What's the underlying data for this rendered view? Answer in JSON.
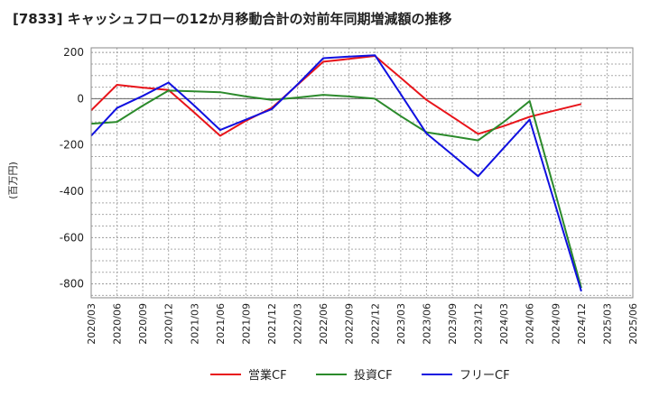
{
  "chart_data": {
    "type": "line",
    "title": "[7833]  キャッシュフローの12か月移動合計の対前年同期増減額の推移",
    "ylabel": "(百万円)",
    "xlabel": "",
    "ylim": [
      -860,
      220
    ],
    "yticks": [
      200,
      0,
      -200,
      -400,
      -600,
      -800
    ],
    "categories": [
      "2020/03",
      "2020/06",
      "2020/09",
      "2020/12",
      "2021/03",
      "2021/06",
      "2021/09",
      "2021/12",
      "2022/03",
      "2022/06",
      "2022/09",
      "2022/12",
      "2023/03",
      "2023/06",
      "2023/09",
      "2023/12",
      "2024/03",
      "2024/06",
      "2024/09",
      "2024/12",
      "2025/03",
      "2025/06"
    ],
    "grid": true,
    "legend_position": "bottom",
    "series": [
      {
        "name": "営業CF",
        "color": "#e8141a",
        "values": [
          -50,
          60,
          48,
          38,
          -60,
          -160,
          -95,
          -40,
          60,
          160,
          172,
          185,
          90,
          -5,
          -78,
          -152,
          -118,
          -78,
          -50,
          -23,
          null,
          null
        ]
      },
      {
        "name": "投資CF",
        "color": "#2b8a2b",
        "values": [
          -108,
          -100,
          -30,
          35,
          32,
          28,
          10,
          -5,
          5,
          17,
          10,
          0,
          -75,
          -145,
          -162,
          -180,
          -100,
          -10,
          -410,
          -818,
          null,
          null
        ]
      },
      {
        "name": "フリーCF",
        "color": "#1010e0",
        "values": [
          -160,
          -40,
          12,
          70,
          -30,
          -135,
          -90,
          -45,
          62,
          175,
          182,
          188,
          20,
          -150,
          -242,
          -335,
          -212,
          -90,
          -462,
          -832,
          null,
          null
        ]
      }
    ]
  }
}
